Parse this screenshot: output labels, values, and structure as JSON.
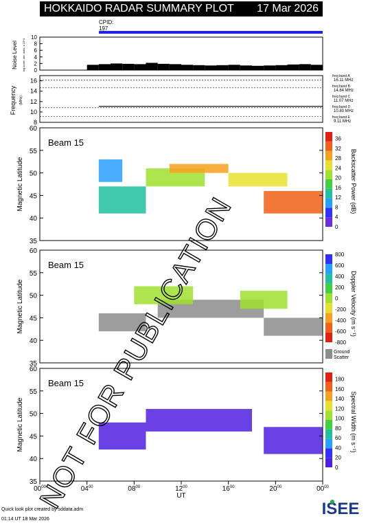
{
  "header": {
    "title": "HOKKAIDO RADAR SUMMARY PLOT",
    "date": "17 Mar 2026"
  },
  "cpid": {
    "label": "CPID:",
    "value": "197"
  },
  "noise_panel": {
    "ylabel": "Noise Level",
    "sublabel": "log-scale, arb. units, x 10^4",
    "ticks": [
      "0",
      "2",
      "4",
      "6",
      "8",
      "10"
    ]
  },
  "freq_panel": {
    "ylabel": "Frequency",
    "unit": "(MHz)",
    "ticks": [
      "8",
      "10",
      "12",
      "14",
      "16"
    ],
    "bands": [
      {
        "name": "freq band A",
        "value": "16.11 MHz"
      },
      {
        "name": "freq band B",
        "value": "14.64 MHz"
      },
      {
        "name": "freq band C",
        "value": "11.07 MHz"
      },
      {
        "name": "freq band D",
        "value": "10.80 MHz"
      },
      {
        "name": "freq band E",
        "value": "9.11 MHz"
      }
    ]
  },
  "panels": [
    {
      "beam": "Beam 15",
      "ylabel": "Magnetic Latitude",
      "yticks": [
        "35",
        "40",
        "45",
        "50",
        "55",
        "60"
      ],
      "cbar_title": "Backscatter Power (dB)",
      "cbar_ticks": [
        "0",
        "4",
        "8",
        "12",
        "16",
        "20",
        "24",
        "28",
        "32",
        "36"
      ]
    },
    {
      "beam": "Beam 15",
      "ylabel": "Magnetic Latitude",
      "yticks": [
        "35",
        "40",
        "45",
        "50",
        "55",
        "60"
      ],
      "cbar_title": "Doppler Velocity (m s⁻¹)",
      "cbar_ticks": [
        "-800",
        "-600",
        "-400",
        "-200",
        "0",
        "200",
        "400",
        "600",
        "800"
      ],
      "ground_label": "Ground",
      "scatter_label": "Scatter"
    },
    {
      "beam": "Beam 15",
      "ylabel": "Magnetic Latitude",
      "yticks": [
        "35",
        "40",
        "45",
        "50",
        "55",
        "60"
      ],
      "cbar_title": "Spectral Width (m s⁻¹)",
      "cbar_ticks": [
        "0",
        "20",
        "40",
        "60",
        "80",
        "100",
        "120",
        "140",
        "160",
        "180"
      ]
    }
  ],
  "xaxis": {
    "label": "UT",
    "ticks": [
      "00",
      "04",
      "08",
      "12",
      "16",
      "20",
      "00"
    ],
    "sup": "00"
  },
  "footer": {
    "line1": "Quick look plot created by sddata.adm",
    "line2": "01:14 UT 18 Mar 2026"
  },
  "logo": {
    "text": "ISEE"
  },
  "watermark": {
    "text": "NOT FOR PUBLICATION"
  },
  "colors": {
    "ground_scatter": "#8c8c8c",
    "cpid_bar": "#2020ff"
  },
  "chart_data": [
    {
      "type": "bar",
      "title": "Noise Level",
      "x_range_hours": [
        0,
        24
      ],
      "ylim": [
        0,
        10
      ],
      "x": [
        5,
        6,
        7,
        8,
        9,
        10,
        11,
        12,
        13,
        14,
        15,
        16,
        17,
        18,
        19,
        20,
        21,
        22,
        23,
        24
      ],
      "values": [
        1.6,
        1.8,
        2.0,
        1.9,
        1.8,
        2.2,
        1.9,
        1.8,
        1.6,
        1.5,
        1.4,
        1.5,
        1.6,
        1.4,
        1.3,
        1.4,
        1.5,
        1.7,
        1.8,
        1.6
      ]
    },
    {
      "type": "line",
      "title": "Frequency",
      "ylim": [
        8,
        17
      ],
      "x_range_hours": [
        0,
        24
      ],
      "series": [
        {
          "name": "freq band C",
          "x": [
            5,
            24
          ],
          "y": [
            11.07,
            11.07
          ]
        }
      ]
    },
    {
      "type": "heatmap",
      "title": "Backscatter Power (dB)",
      "xlim": [
        0,
        24
      ],
      "ylim": [
        35,
        60
      ],
      "zlim": [
        0,
        36
      ],
      "regions": [
        {
          "t": [
            5,
            9
          ],
          "lat": [
            41,
            47
          ],
          "value": 14
        },
        {
          "t": [
            5,
            7
          ],
          "lat": [
            48,
            53
          ],
          "value": 10
        },
        {
          "t": [
            9,
            14
          ],
          "lat": [
            47,
            51
          ],
          "value": 20
        },
        {
          "t": [
            11,
            16
          ],
          "lat": [
            50,
            52
          ],
          "value": 28
        },
        {
          "t": [
            16,
            21
          ],
          "lat": [
            47,
            50
          ],
          "value": 24
        },
        {
          "t": [
            19,
            24
          ],
          "lat": [
            41,
            46
          ],
          "value": 32
        }
      ]
    },
    {
      "type": "heatmap",
      "title": "Doppler Velocity",
      "xlim": [
        0,
        24
      ],
      "ylim": [
        35,
        60
      ],
      "zlim": [
        -800,
        800
      ],
      "regions": [
        {
          "t": [
            5,
            9
          ],
          "lat": [
            42,
            46
          ],
          "value": "ground"
        },
        {
          "t": [
            10,
            19
          ],
          "lat": [
            45,
            49
          ],
          "value": "ground"
        },
        {
          "t": [
            19,
            24
          ],
          "lat": [
            41,
            45
          ],
          "value": "ground"
        },
        {
          "t": [
            8,
            13
          ],
          "lat": [
            48,
            52
          ],
          "value": 100
        },
        {
          "t": [
            17,
            21
          ],
          "lat": [
            47,
            51
          ],
          "value": 150
        }
      ]
    },
    {
      "type": "heatmap",
      "title": "Spectral Width",
      "xlim": [
        0,
        24
      ],
      "ylim": [
        35,
        60
      ],
      "zlim": [
        0,
        180
      ],
      "regions": [
        {
          "t": [
            5,
            9
          ],
          "lat": [
            42,
            48
          ],
          "value": 10
        },
        {
          "t": [
            9,
            18
          ],
          "lat": [
            46,
            51
          ],
          "value": 10
        },
        {
          "t": [
            19,
            24
          ],
          "lat": [
            41,
            47
          ],
          "value": 10
        }
      ]
    }
  ]
}
